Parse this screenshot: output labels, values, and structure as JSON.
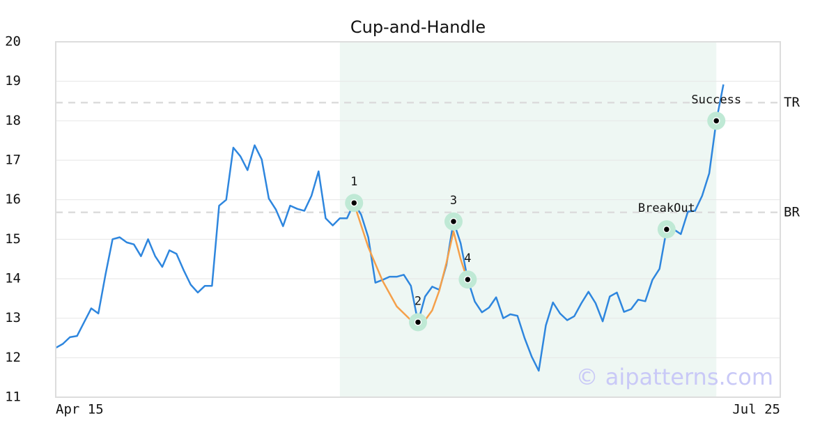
{
  "chart_data": {
    "type": "line",
    "title": "Cup-and-Handle",
    "x": [
      0,
      1,
      2,
      3,
      4,
      5,
      6,
      7,
      8,
      9,
      10,
      11,
      12,
      13,
      14,
      15,
      16,
      17,
      18,
      19,
      20,
      21,
      22,
      23,
      24,
      25,
      26,
      27,
      28,
      29,
      30,
      31,
      32,
      33,
      34,
      35,
      36,
      37,
      38,
      39,
      40,
      41,
      42,
      43,
      44,
      45,
      46,
      47,
      48,
      49,
      50,
      51,
      52,
      53,
      54,
      55,
      56,
      57,
      58,
      59,
      60,
      61,
      62,
      63,
      64,
      65,
      66,
      67,
      68,
      69,
      70,
      71,
      72,
      73,
      74,
      75,
      76,
      77,
      78,
      79,
      80,
      81,
      82,
      83,
      84,
      85,
      86,
      87,
      88,
      89,
      90,
      91,
      92,
      93,
      94
    ],
    "xlim": [
      0,
      102
    ],
    "xticks": [
      {
        "value": 0,
        "label": "Apr 15"
      },
      {
        "value": 102,
        "label": "Jul 25"
      }
    ],
    "ylim": [
      11,
      20
    ],
    "yticks": [
      11,
      12,
      13,
      14,
      15,
      16,
      17,
      18,
      19,
      20
    ],
    "grid": true,
    "series": [
      {
        "color": "#2e86de",
        "values": [
          12.25,
          12.35,
          12.52,
          12.55,
          12.9,
          13.25,
          13.12,
          14.1,
          15.0,
          15.05,
          14.92,
          14.87,
          14.57,
          15.0,
          14.57,
          14.3,
          14.72,
          14.63,
          14.22,
          13.85,
          13.65,
          13.82,
          13.82,
          15.85,
          16.0,
          17.32,
          17.1,
          16.75,
          17.38,
          17.02,
          16.03,
          15.75,
          15.33,
          15.85,
          15.77,
          15.72,
          16.1,
          16.72,
          15.53,
          15.35,
          15.53,
          15.53,
          15.92,
          15.62,
          15.05,
          13.9,
          13.97,
          14.05,
          14.05,
          14.1,
          13.82,
          12.9,
          13.55,
          13.8,
          13.72,
          14.35,
          15.45,
          14.9,
          13.98,
          13.42,
          13.15,
          13.27,
          13.53,
          13.0,
          13.1,
          13.06,
          12.5,
          12.03,
          11.67,
          12.82,
          13.4,
          13.12,
          12.95,
          13.05,
          13.38,
          13.67,
          13.38,
          12.92,
          13.55,
          13.65,
          13.16,
          13.23,
          13.47,
          13.43,
          13.97,
          14.25,
          15.25,
          15.25,
          15.13,
          15.7,
          15.72,
          16.1,
          16.67,
          18.0,
          18.92
        ]
      },
      {
        "color": "#f5a04a",
        "x": [
          42,
          44,
          46,
          48,
          50,
          51,
          52,
          53,
          54,
          55,
          56,
          57,
          58
        ],
        "values": [
          15.9,
          14.8,
          13.95,
          13.3,
          12.95,
          12.88,
          12.95,
          13.2,
          13.7,
          14.4,
          15.2,
          14.5,
          13.95
        ]
      }
    ],
    "shade": {
      "from": 40,
      "to": 93,
      "color": "#eef7f3"
    },
    "levels": [
      {
        "label": "TR",
        "value": 18.46
      },
      {
        "label": "BR",
        "value": 15.68
      }
    ],
    "points": [
      {
        "label": "1",
        "x": 42,
        "y": 15.92
      },
      {
        "label": "2",
        "x": 51,
        "y": 12.9
      },
      {
        "label": "3",
        "x": 56,
        "y": 15.45
      },
      {
        "label": "4",
        "x": 58,
        "y": 13.98
      },
      {
        "label": "BreakOut",
        "x": 86,
        "y": 15.25
      },
      {
        "label": "Success",
        "x": 93,
        "y": 18.0
      }
    ],
    "watermark": "© aipatterns.com"
  }
}
